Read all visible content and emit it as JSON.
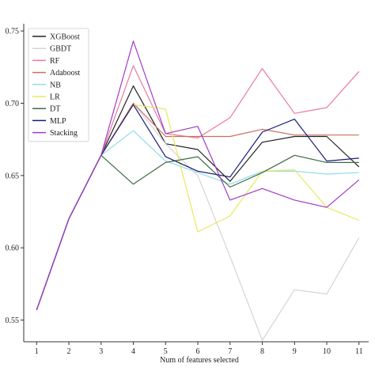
{
  "chart_data": {
    "type": "line",
    "title": "",
    "xlabel": "Num of features selected",
    "ylabel": "",
    "x": [
      1,
      2,
      3,
      4,
      5,
      6,
      7,
      8,
      9,
      10,
      11
    ],
    "xlim": [
      0.6,
      11.3
    ],
    "ylim": [
      0.535,
      0.755
    ],
    "xticks": [
      "1",
      "2",
      "3",
      "4",
      "5",
      "6",
      "7",
      "8",
      "9",
      "10",
      "11"
    ],
    "yticks": [
      "0.55",
      "0.60",
      "0.65",
      "0.70",
      "0.75"
    ],
    "ytick_values": [
      0.55,
      0.6,
      0.65,
      0.7,
      0.75
    ],
    "grid": false,
    "legend_position": "top-left",
    "series": [
      {
        "name": "XGBoost",
        "color": "#222222",
        "values": [
          0.557,
          0.62,
          0.664,
          0.712,
          0.672,
          0.668,
          0.646,
          0.673,
          0.677,
          0.677,
          0.656
        ]
      },
      {
        "name": "GBDT",
        "color": "#d4d4d4",
        "values": [
          0.557,
          0.62,
          0.664,
          0.7,
          0.672,
          0.65,
          0.594,
          0.536,
          0.571,
          0.568,
          0.607
        ]
      },
      {
        "name": "RF",
        "color": "#e87b9e",
        "values": [
          0.557,
          0.62,
          0.664,
          0.726,
          0.679,
          0.676,
          0.69,
          0.724,
          0.693,
          0.697,
          0.722
        ]
      },
      {
        "name": "Adaboost",
        "color": "#c8705a",
        "values": [
          0.557,
          0.62,
          0.664,
          0.7,
          0.677,
          0.677,
          0.677,
          0.682,
          0.678,
          0.678,
          0.678
        ]
      },
      {
        "name": "NB",
        "color": "#8fdde8",
        "values": [
          0.557,
          0.62,
          0.664,
          0.681,
          0.66,
          0.652,
          0.644,
          0.653,
          0.653,
          0.651,
          0.652
        ]
      },
      {
        "name": "LR",
        "color": "#e8e85e",
        "values": [
          0.557,
          0.62,
          0.664,
          0.699,
          0.696,
          0.611,
          0.622,
          0.653,
          0.654,
          0.628,
          0.619
        ]
      },
      {
        "name": "DT",
        "color": "#3f6b44",
        "values": [
          0.557,
          0.62,
          0.664,
          0.644,
          0.659,
          0.663,
          0.642,
          0.652,
          0.664,
          0.659,
          0.659
        ]
      },
      {
        "name": "MLP",
        "color": "#1a1a7a",
        "values": [
          0.557,
          0.62,
          0.664,
          0.699,
          0.663,
          0.653,
          0.649,
          0.68,
          0.689,
          0.66,
          0.662
        ]
      },
      {
        "name": "Stacking",
        "color": "#a03cc8",
        "values": [
          0.557,
          0.62,
          0.664,
          0.743,
          0.679,
          0.684,
          0.633,
          0.641,
          0.633,
          0.628,
          0.647
        ]
      }
    ]
  }
}
